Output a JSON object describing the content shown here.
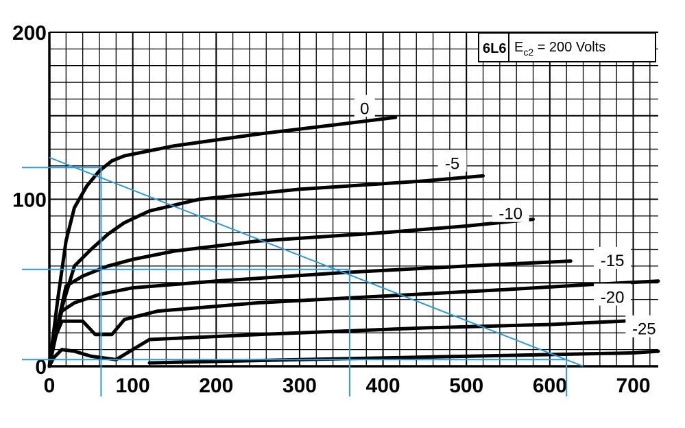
{
  "chart_data": {
    "type": "line",
    "title": "6L6",
    "subtitle": "E",
    "subtitle_sub": "c2",
    "subtitle_rest": " = 200 Volts",
    "xlabel": "",
    "ylabel": "",
    "xlim": [
      0,
      730
    ],
    "ylim": [
      0,
      200
    ],
    "x_ticks": [
      0,
      100,
      200,
      300,
      400,
      500,
      600,
      700
    ],
    "y_ticks": [
      0,
      100,
      200
    ],
    "grid": true,
    "series": [
      {
        "name": "0",
        "points": [
          [
            0,
            0
          ],
          [
            10,
            40
          ],
          [
            20,
            75
          ],
          [
            30,
            95
          ],
          [
            45,
            108
          ],
          [
            60,
            117
          ],
          [
            75,
            123
          ],
          [
            90,
            126
          ],
          [
            150,
            132
          ],
          [
            250,
            139
          ],
          [
            350,
            145
          ],
          [
            415,
            149
          ]
        ]
      },
      {
        "name": "-5",
        "points": [
          [
            0,
            0
          ],
          [
            15,
            35
          ],
          [
            30,
            60
          ],
          [
            50,
            70
          ],
          [
            70,
            79
          ],
          [
            90,
            86
          ],
          [
            120,
            93
          ],
          [
            180,
            100
          ],
          [
            300,
            106
          ],
          [
            450,
            111
          ],
          [
            520,
            114
          ]
        ]
      },
      {
        "name": "-10",
        "points": [
          [
            0,
            0
          ],
          [
            10,
            25
          ],
          [
            20,
            48
          ],
          [
            40,
            54
          ],
          [
            70,
            60
          ],
          [
            100,
            64
          ],
          [
            150,
            69
          ],
          [
            250,
            75
          ],
          [
            400,
            80
          ],
          [
            500,
            84
          ],
          [
            580,
            88
          ]
        ]
      },
      {
        "name": "-15",
        "points": [
          [
            0,
            0
          ],
          [
            8,
            20
          ],
          [
            15,
            33
          ],
          [
            30,
            38
          ],
          [
            60,
            43
          ],
          [
            100,
            47
          ],
          [
            200,
            51
          ],
          [
            350,
            56
          ],
          [
            500,
            60
          ],
          [
            625,
            63
          ]
        ]
      },
      {
        "name": "-20",
        "points": [
          [
            0,
            0
          ],
          [
            5,
            15
          ],
          [
            15,
            27
          ],
          [
            40,
            27
          ],
          [
            55,
            19
          ],
          [
            75,
            19
          ],
          [
            90,
            28
          ],
          [
            130,
            33
          ],
          [
            250,
            38
          ],
          [
            400,
            42
          ],
          [
            550,
            46
          ],
          [
            650,
            49
          ],
          [
            730,
            51
          ]
        ]
      },
      {
        "name": "-25",
        "points": [
          [
            0,
            0
          ],
          [
            5,
            5
          ],
          [
            15,
            10
          ],
          [
            30,
            9
          ],
          [
            50,
            6
          ],
          [
            80,
            4
          ],
          [
            100,
            10
          ],
          [
            120,
            16
          ],
          [
            250,
            19
          ],
          [
            450,
            23
          ],
          [
            600,
            25
          ],
          [
            730,
            28
          ]
        ]
      },
      {
        "name": "",
        "points": [
          [
            120,
            2
          ],
          [
            300,
            4
          ],
          [
            500,
            6
          ],
          [
            700,
            8
          ],
          [
            730,
            9
          ]
        ]
      }
    ],
    "annotations": [
      {
        "text": "0",
        "x": 378,
        "y": 151
      },
      {
        "text": "-5",
        "x": 483,
        "y": 118
      },
      {
        "text": "-10",
        "x": 553,
        "y": 88
      },
      {
        "text": "-15",
        "x": 675,
        "y": 60
      },
      {
        "text": "-20",
        "x": 675,
        "y": 38
      },
      {
        "text": "-25",
        "x": 713,
        "y": 19
      }
    ],
    "load_line": {
      "from": [
        0,
        125
      ],
      "to": [
        640,
        0
      ]
    },
    "projection_lines": [
      {
        "x": 62,
        "y": 119
      },
      {
        "x": 360,
        "y": 58
      },
      {
        "x": 620,
        "y": 4
      }
    ],
    "colors": {
      "grid": "#000000",
      "curves": "#000000",
      "load_line": "#2a9bd6"
    }
  }
}
